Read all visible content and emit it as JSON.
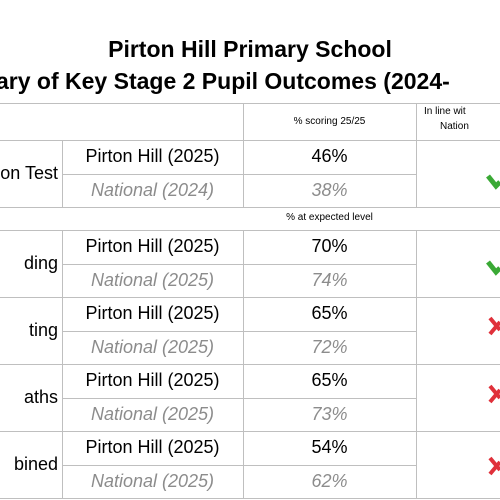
{
  "header": {
    "title": "Pirton Hill Primary School",
    "subtitle": "ary of Key Stage 2 Pupil Outcomes (2024-"
  },
  "table": {
    "columns": [
      "% scoring 25/25",
      "In line wit",
      "Nation"
    ],
    "subheader": "% at expected level",
    "groups": [
      {
        "label": "on Test",
        "rows": [
          [
            "Pirton Hill (2025)",
            "46%"
          ],
          [
            "National (2024)",
            "38%"
          ]
        ]
      },
      {
        "label": "ding",
        "rows": [
          [
            "Pirton Hill (2025)",
            "70%"
          ],
          [
            "National (2025)",
            "74%"
          ]
        ]
      },
      {
        "label": "ting",
        "rows": [
          [
            "Pirton Hill (2025)",
            "65%"
          ],
          [
            "National (2025)",
            "72%"
          ]
        ]
      },
      {
        "label": "aths",
        "rows": [
          [
            "Pirton Hill (2025)",
            "65%"
          ],
          [
            "National (2025)",
            "73%"
          ]
        ]
      },
      {
        "label": "bined",
        "rows": [
          [
            "Pirton Hill (2025)",
            "54%"
          ],
          [
            "National (2025)",
            "62%"
          ]
        ]
      }
    ]
  }
}
